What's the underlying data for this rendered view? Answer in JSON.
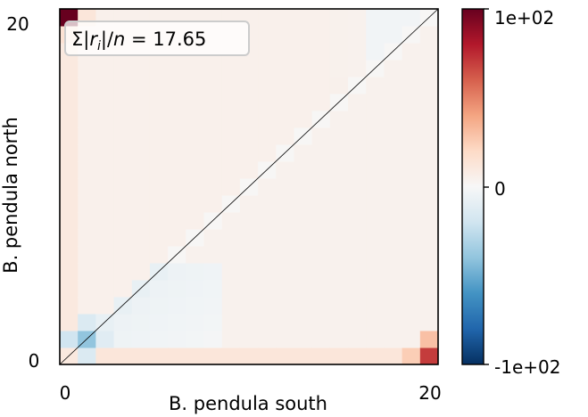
{
  "chart_data": {
    "type": "heatmap",
    "title": "",
    "xlabel": "B. pendula south",
    "ylabel": "B. pendula north",
    "x_ticks": [
      "0",
      "20"
    ],
    "y_ticks": [
      "0",
      "20"
    ],
    "xlim": [
      0,
      20
    ],
    "ylim": [
      0,
      20
    ],
    "grid_size": 21,
    "colormap": "RdBu_r",
    "color_range": [
      -100,
      100
    ],
    "colorbar_ticks": [
      "1e+02",
      "0",
      "-1e+02"
    ],
    "annotation": {
      "prefix": "Σ|",
      "r": "r",
      "sub": "i",
      "suffix": "|/",
      "n": "n",
      "equals": " = 17.65"
    },
    "diagonal_line": true,
    "highlights": [
      {
        "x": 0,
        "y": 20,
        "value": 100
      },
      {
        "x": 20,
        "y": 0,
        "value": 70
      },
      {
        "x": 20,
        "y": 1,
        "value": 30
      },
      {
        "x": 19,
        "y": 0,
        "value": 25
      },
      {
        "x": 1,
        "y": 1,
        "value": -40
      },
      {
        "x": 1,
        "y": 2,
        "value": -15
      },
      {
        "x": 0,
        "y": 1,
        "value": -20
      },
      {
        "x": 1,
        "y": 0,
        "value": -15
      },
      {
        "x": 2,
        "y": 1,
        "value": -12
      },
      {
        "x": 0,
        "y": 19,
        "value": 15
      },
      {
        "x": 1,
        "y": 20,
        "value": 12
      }
    ]
  }
}
